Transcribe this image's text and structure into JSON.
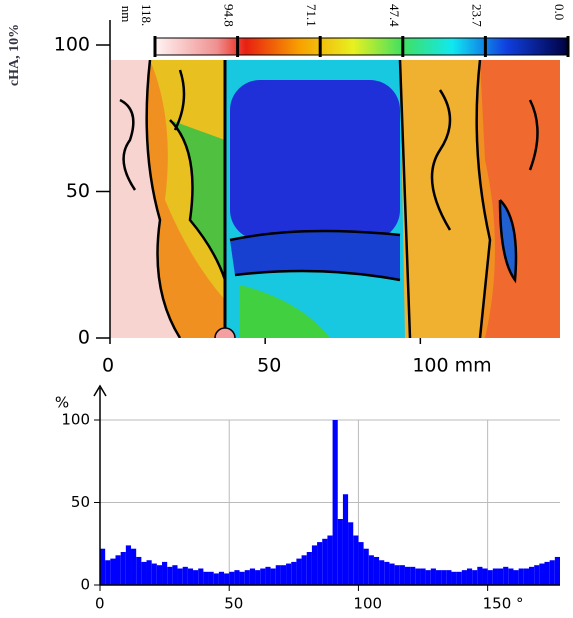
{
  "chart_data": [
    {
      "type": "map",
      "ylabel": "cHA, 10%",
      "xlim": [
        0,
        145
      ],
      "xticks": [
        0,
        50,
        {
          "value": 100,
          "label": "100 mm"
        }
      ],
      "ylim": [
        0,
        100
      ],
      "yticks": [
        0,
        50,
        100
      ],
      "colorbar": {
        "unit": "nm",
        "clim": [
          118.5,
          0
        ],
        "ticks": [
          {
            "value": 118.5,
            "label": "118."
          },
          94.8,
          71.1,
          47.4,
          23.7,
          {
            "value": 0,
            "label": "0.0"
          }
        ]
      }
    },
    {
      "type": "histogram",
      "ylabel": "%",
      "color": "#0000ff",
      "grid": true,
      "xlim": [
        0,
        178
      ],
      "xticks": [
        0,
        50,
        100,
        {
          "value": 150,
          "label": "150 °"
        }
      ],
      "ylim": [
        0,
        100
      ],
      "yticks": [
        0,
        50,
        100
      ],
      "bins": [
        0,
        2,
        4,
        6,
        8,
        10,
        12,
        14,
        16,
        18,
        20,
        22,
        24,
        26,
        28,
        30,
        32,
        34,
        36,
        38,
        40,
        42,
        44,
        46,
        48,
        50,
        52,
        54,
        56,
        58,
        60,
        62,
        64,
        66,
        68,
        70,
        72,
        74,
        76,
        78,
        80,
        82,
        84,
        86,
        88,
        90,
        92,
        94,
        96,
        98,
        100,
        102,
        104,
        106,
        108,
        110,
        112,
        114,
        116,
        118,
        120,
        122,
        124,
        126,
        128,
        130,
        132,
        134,
        136,
        138,
        140,
        142,
        144,
        146,
        148,
        150,
        152,
        154,
        156,
        158,
        160,
        162,
        164,
        166,
        168,
        170,
        172,
        174,
        176,
        178
      ],
      "values": [
        22,
        15,
        16,
        18,
        20,
        24,
        22,
        17,
        14,
        15,
        13,
        12,
        14,
        11,
        12,
        10,
        11,
        10,
        9,
        10,
        8,
        8,
        7,
        8,
        7,
        8,
        9,
        8,
        9,
        10,
        9,
        10,
        11,
        10,
        12,
        12,
        13,
        14,
        16,
        18,
        20,
        24,
        26,
        28,
        30,
        100,
        40,
        55,
        38,
        30,
        26,
        22,
        18,
        17,
        15,
        14,
        13,
        12,
        12,
        11,
        11,
        10,
        10,
        9,
        10,
        9,
        9,
        9,
        8,
        8,
        9,
        10,
        9,
        11,
        10,
        9,
        10,
        10,
        11,
        10,
        9,
        10,
        10,
        11,
        12,
        13,
        14,
        15,
        17
      ]
    }
  ]
}
